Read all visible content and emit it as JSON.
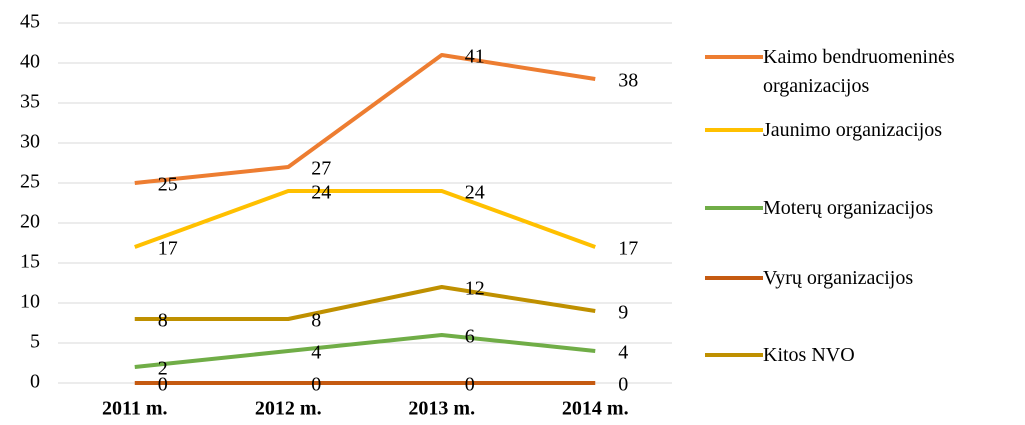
{
  "chart_data": {
    "type": "line",
    "categories": [
      "2011 m.",
      "2012 m.",
      "2013 m.",
      "2014 m."
    ],
    "series": [
      {
        "name": "Kaimo bendruomeninės organizacijos",
        "color": "#ed7d31",
        "values": [
          25,
          27,
          41,
          38
        ]
      },
      {
        "name": "Jaunimo organizacijos",
        "color": "#ffc000",
        "values": [
          17,
          24,
          24,
          17
        ]
      },
      {
        "name": "Moterų organizacijos",
        "color": "#70ad47",
        "values": [
          2,
          4,
          6,
          4
        ]
      },
      {
        "name": "Vyrų organizacijos",
        "color": "#c55a11",
        "values": [
          0,
          0,
          0,
          0
        ]
      },
      {
        "name": "Kitos NVO",
        "color": "#bf9000",
        "values": [
          8,
          8,
          12,
          9
        ]
      }
    ],
    "ylim": [
      0,
      45
    ],
    "yticks": [
      0,
      5,
      10,
      15,
      20,
      25,
      30,
      35,
      40,
      45
    ],
    "grid": true,
    "legend": "right"
  }
}
